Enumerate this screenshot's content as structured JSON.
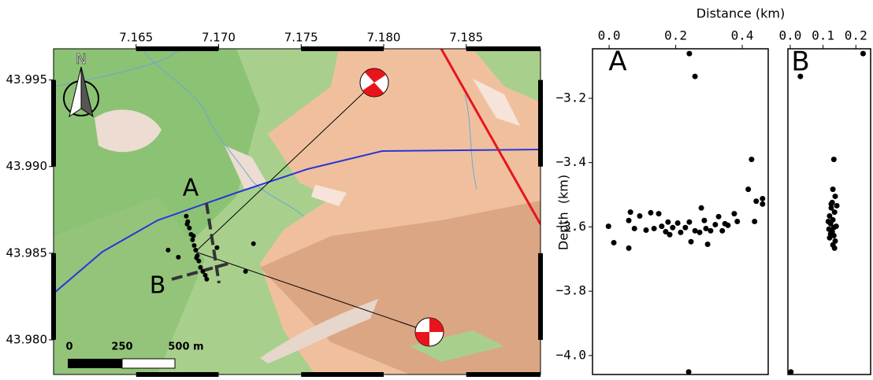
{
  "chart_data": [
    {
      "type": "map",
      "xlim": [
        7.16,
        7.1895
      ],
      "ylim": [
        43.978,
        43.9968
      ],
      "xticks": [
        {
          "value": 7.165,
          "label": "7.165"
        },
        {
          "value": 7.17,
          "label": "7.170"
        },
        {
          "value": 7.175,
          "label": "7.175"
        },
        {
          "value": 7.18,
          "label": "7.180"
        },
        {
          "value": 7.185,
          "label": "7.185"
        }
      ],
      "yticks": [
        {
          "value": 43.98,
          "label": "43.980"
        },
        {
          "value": 43.985,
          "label": "43.985"
        },
        {
          "value": 43.99,
          "label": "43.990"
        },
        {
          "value": 43.995,
          "label": "43.995"
        }
      ],
      "north_label": "N",
      "section_labels": [
        "A",
        "B"
      ],
      "scale_labels": [
        "0",
        "250",
        "500 m"
      ],
      "color": "#000000",
      "x": [
        7.16804,
        7.16813,
        7.16823,
        7.16833,
        7.16842,
        7.16852,
        7.16861,
        7.16871,
        7.1688,
        7.1689,
        7.16904,
        7.16919,
        7.16928,
        7.16809,
        7.16847,
        7.16866,
        7.16694,
        7.16756,
        7.1699,
        7.17211,
        7.17163
      ],
      "y": [
        43.98714,
        43.98682,
        43.98645,
        43.98609,
        43.98577,
        43.98545,
        43.98518,
        43.98486,
        43.98455,
        43.98418,
        43.98395,
        43.98373,
        43.9835,
        43.98668,
        43.986,
        43.98473,
        43.98518,
        43.98477,
        43.98532,
        43.98555,
        43.98395
      ]
    },
    {
      "type": "scatter",
      "title": "Distance (km)",
      "ylabel": "Depth  (km)",
      "panel_label": "A",
      "color": "#000000",
      "xlim": [
        -0.05,
        0.478
      ],
      "ylim": [
        -4.059,
        -3.046
      ],
      "xticks": [
        {
          "value": 0,
          "label": "0.0"
        },
        0.2,
        0.4
      ],
      "yticks": [
        {
          "value": -3.2,
          "label": "−3.2"
        },
        {
          "value": -3.4,
          "label": "−3.4"
        },
        {
          "value": -3.6,
          "label": "−3.6"
        },
        {
          "value": -3.8,
          "label": "−3.8"
        },
        {
          "value": -4.0,
          "label": "−4.0"
        }
      ],
      "x": [
        0.241,
        0.258,
        0.428,
        0.418,
        0.461,
        0.442,
        0.461,
        0.437,
        -0.002,
        0.014,
        0.059,
        0.064,
        0.076,
        0.092,
        0.111,
        0.125,
        0.135,
        0.149,
        0.158,
        0.17,
        0.177,
        0.182,
        0.191,
        0.206,
        0.215,
        0.229,
        0.241,
        0.246,
        0.258,
        0.272,
        0.277,
        0.286,
        0.291,
        0.296,
        0.305,
        0.319,
        0.329,
        0.34,
        0.348,
        0.357,
        0.376,
        0.385,
        0.059,
        0.239
      ],
      "y": [
        -3.061,
        -3.132,
        -3.39,
        -3.483,
        -3.512,
        -3.52,
        -3.529,
        -3.583,
        -3.598,
        -3.649,
        -3.58,
        -3.554,
        -3.605,
        -3.566,
        -3.61,
        -3.556,
        -3.605,
        -3.559,
        -3.598,
        -3.615,
        -3.585,
        -3.624,
        -3.602,
        -3.588,
        -3.617,
        -3.602,
        -3.585,
        -3.646,
        -3.612,
        -3.617,
        -3.541,
        -3.58,
        -3.605,
        -3.654,
        -3.612,
        -3.593,
        -3.568,
        -3.612,
        -3.59,
        -3.595,
        -3.559,
        -3.583,
        -3.666,
        -4.051
      ]
    },
    {
      "type": "scatter",
      "panel_label": "B",
      "color": "#000000",
      "xlim": [
        -0.007,
        0.245
      ],
      "ylim": [
        -4.059,
        -3.046
      ],
      "xticks": [
        {
          "value": 0,
          "label": "0.0"
        },
        0.1,
        0.2
      ],
      "x": [
        0.222,
        0.031,
        0.002,
        0.133,
        0.13,
        0.137,
        0.128,
        0.125,
        0.135,
        0.12,
        0.13,
        0.123,
        0.14,
        0.118,
        0.128,
        0.133,
        0.12,
        0.137,
        0.13,
        0.135,
        0.125,
        0.116,
        0.142,
        0.123,
        0.133
      ],
      "y": [
        -3.061,
        -3.132,
        -4.051,
        -3.39,
        -3.483,
        -3.505,
        -3.524,
        -3.541,
        -3.554,
        -3.566,
        -3.578,
        -3.59,
        -3.598,
        -3.607,
        -3.615,
        -3.627,
        -3.634,
        -3.644,
        -3.656,
        -3.666,
        -3.529,
        -3.583,
        -3.534,
        -3.622,
        -3.602
      ]
    }
  ]
}
